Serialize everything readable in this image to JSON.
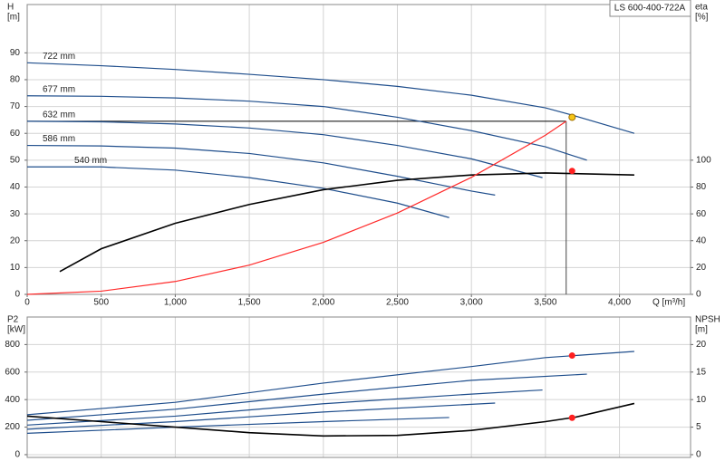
{
  "chart_data": [
    {
      "type": "line",
      "title": "LS 600-400-722A",
      "ylabel": "H",
      "yunit": "[m]",
      "y2label": "eta",
      "y2unit": "[%]",
      "xlabel": "Q [m³/h]",
      "xlim": [
        0,
        4480
      ],
      "ylim": [
        0,
        108
      ],
      "y2lim": [
        0,
        216
      ],
      "xticks": [
        0,
        500,
        {
          "value": 1000,
          "label": "1,000"
        },
        {
          "value": 1500,
          "label": "1,500"
        },
        {
          "value": 2000,
          "label": "2,000"
        },
        {
          "value": 2500,
          "label": "2,500"
        },
        {
          "value": 3000,
          "label": "3,000"
        },
        {
          "value": 3500,
          "label": "3,500"
        },
        {
          "value": 4000,
          "label": "4,000"
        }
      ],
      "yticks": [
        0,
        10,
        20,
        30,
        40,
        50,
        60,
        70,
        80,
        90
      ],
      "y2ticks": [
        0,
        20,
        40,
        60,
        80,
        100
      ],
      "grid": true,
      "series": [
        {
          "name": "722 mm",
          "color": "#1f4e8c",
          "x": [
            0,
            500,
            1000,
            1500,
            2000,
            2500,
            3000,
            3500,
            3700,
            4100
          ],
          "values": [
            86.3,
            85.2,
            83.8,
            82,
            80,
            77.5,
            74.2,
            69.5,
            66.5,
            60
          ]
        },
        {
          "name": "677 mm",
          "color": "#1f4e8c",
          "x": [
            0,
            500,
            1000,
            1500,
            2000,
            2500,
            3000,
            3500,
            3780
          ],
          "values": [
            74,
            73.8,
            73.2,
            72,
            70,
            66,
            61,
            55,
            50
          ]
        },
        {
          "name": "632 mm",
          "color": "#1f4e8c",
          "x": [
            0,
            500,
            1000,
            1500,
            2000,
            2500,
            3000,
            3480
          ],
          "values": [
            64.5,
            64.3,
            63.5,
            62,
            59.5,
            55.5,
            50.5,
            43.5
          ]
        },
        {
          "name": "586 mm",
          "color": "#1f4e8c",
          "x": [
            0,
            500,
            1000,
            1500,
            2000,
            2500,
            3000,
            3160
          ],
          "values": [
            55.5,
            55.3,
            54.5,
            52.5,
            49,
            44,
            38.5,
            37
          ]
        },
        {
          "name": "540 mm",
          "color": "#1f4e8c",
          "x": [
            0,
            500,
            1000,
            1500,
            2000,
            2500,
            2850
          ],
          "values": [
            47.5,
            47.5,
            46.3,
            43.5,
            39.5,
            34,
            28.6
          ]
        },
        {
          "axis": "y2",
          "color": "#000000",
          "x": [
            220,
            500,
            1000,
            1500,
            2000,
            2500,
            3000,
            3500,
            3700,
            4100
          ],
          "values": [
            17,
            34,
            53,
            67,
            78,
            85,
            89,
            90.5,
            90,
            89
          ]
        },
        {
          "color": "#ff2a2a",
          "x": [
            0,
            500,
            1000,
            1500,
            2000,
            2500,
            3000,
            3500,
            3640
          ],
          "values": [
            0,
            1.2,
            4.8,
            10.9,
            19.4,
            30.3,
            43.6,
            59.3,
            64.5
          ]
        }
      ],
      "guides": {
        "x": 3640,
        "y": 64.5
      },
      "markers": [
        {
          "x": 3680,
          "y": 66,
          "color": "#f5c518"
        },
        {
          "x": 3680,
          "y": 92,
          "axis": "y2",
          "color": "#ff2020"
        }
      ]
    },
    {
      "type": "line",
      "ylabel": "P2",
      "yunit": "[kW]",
      "y2label": "NPSH",
      "y2unit": "[m]",
      "xlim": [
        0,
        4480
      ],
      "ylim": [
        -20,
        1000
      ],
      "y2lim": [
        -0.5,
        25
      ],
      "yticks": [
        0,
        200,
        400,
        600,
        800
      ],
      "y2ticks": [
        0,
        5,
        10,
        15,
        20
      ],
      "grid": true,
      "series": [
        {
          "color": "#1f4e8c",
          "x": [
            0,
            1000,
            2000,
            3000,
            3500,
            4100
          ],
          "values": [
            290,
            380,
            520,
            640,
            705,
            750
          ]
        },
        {
          "color": "#1f4e8c",
          "x": [
            0,
            1000,
            2000,
            3000,
            3780
          ],
          "values": [
            250,
            330,
            440,
            540,
            585
          ]
        },
        {
          "color": "#1f4e8c",
          "x": [
            0,
            1000,
            2000,
            3000,
            3480
          ],
          "values": [
            215,
            280,
            370,
            440,
            470
          ]
        },
        {
          "color": "#1f4e8c",
          "x": [
            0,
            1000,
            2000,
            3160
          ],
          "values": [
            185,
            240,
            310,
            375
          ]
        },
        {
          "color": "#1f4e8c",
          "x": [
            0,
            1000,
            2000,
            2850
          ],
          "values": [
            155,
            200,
            240,
            270
          ]
        },
        {
          "axis": "y2",
          "color": "#000000",
          "x": [
            0,
            500,
            1000,
            1500,
            2000,
            2500,
            3000,
            3500,
            3700,
            4100
          ],
          "values": [
            7,
            6,
            5,
            4,
            3.4,
            3.5,
            4.4,
            6,
            6.8,
            9.3
          ]
        }
      ],
      "markers": [
        {
          "x": 3680,
          "y": 720,
          "color": "#ff2020"
        },
        {
          "x": 3680,
          "y": 6.7,
          "axis": "y2",
          "color": "#ff2020"
        }
      ]
    }
  ]
}
